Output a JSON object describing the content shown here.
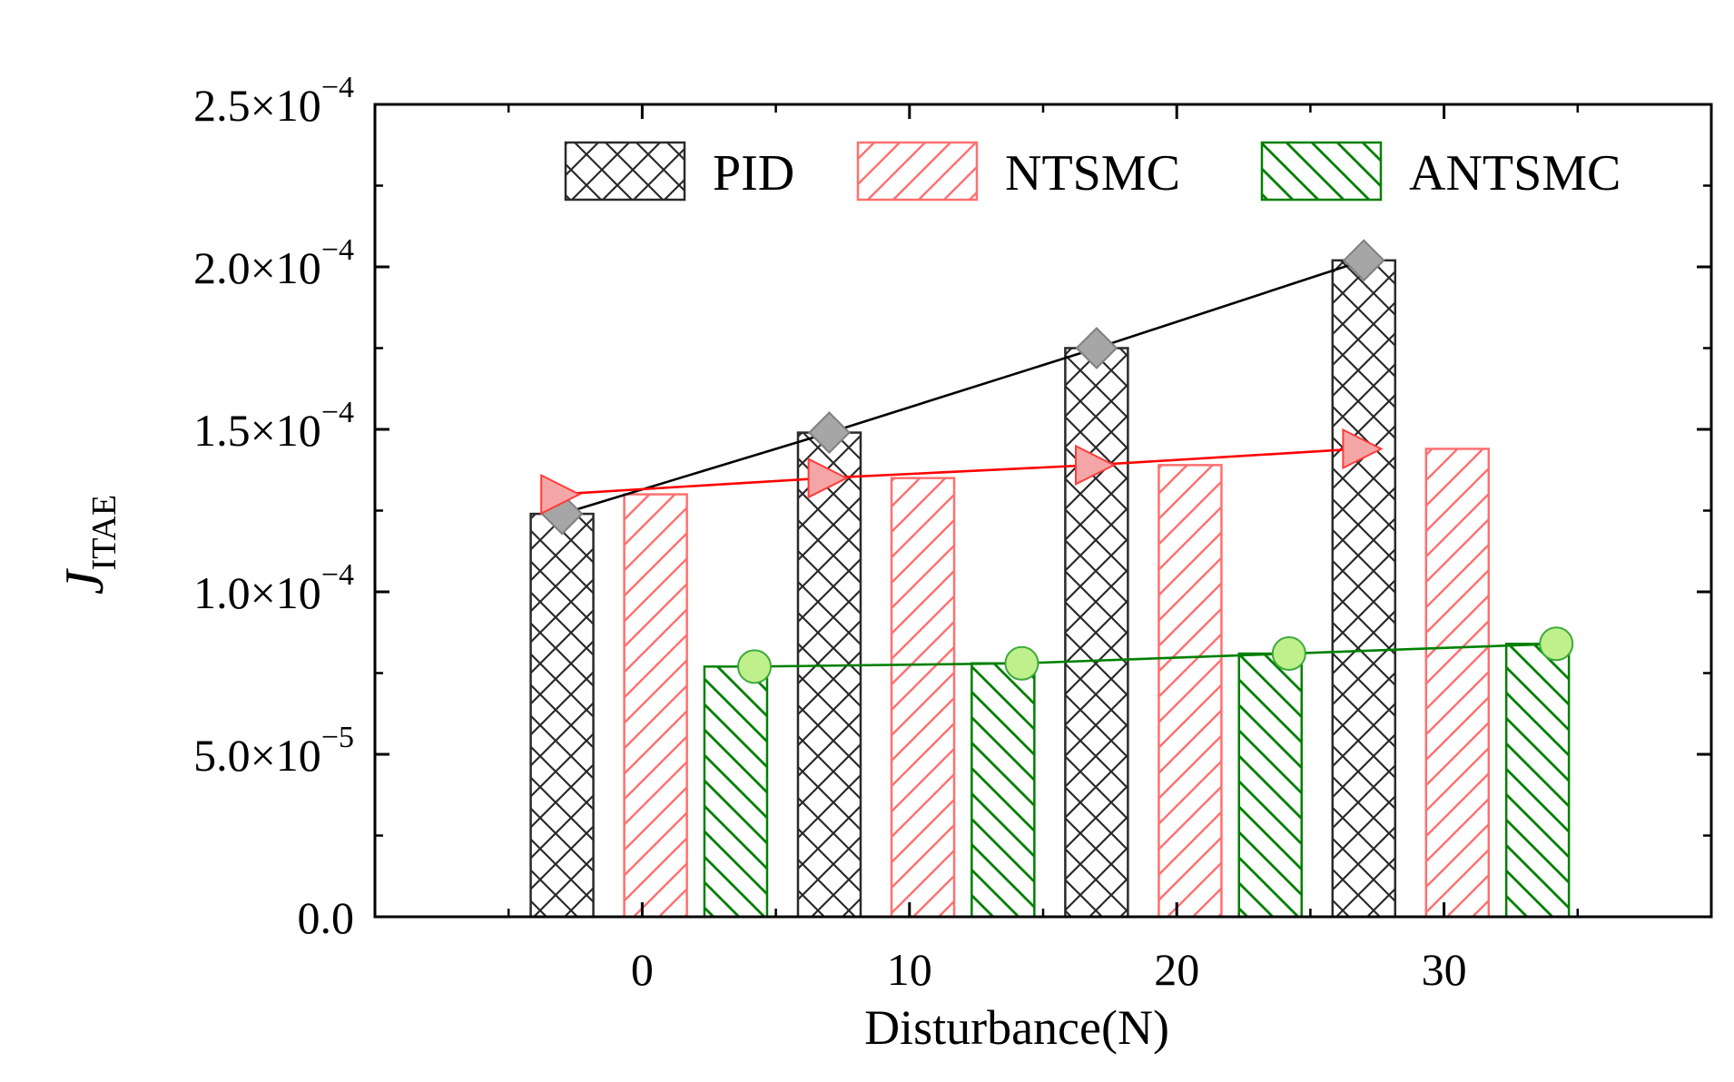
{
  "chart_data": {
    "type": "bar",
    "xlabel": "Disturbance(N)",
    "ylabel": {
      "main": "J",
      "sub": "ITAE"
    },
    "categories": [
      "0",
      "10",
      "20",
      "30"
    ],
    "x": [
      0,
      10,
      20,
      30
    ],
    "ylim": [
      0,
      0.00025
    ],
    "yticks": [
      {
        "value": 0,
        "mantissa": "0.0",
        "exponent": ""
      },
      {
        "value": 5e-05,
        "mantissa": "5.0×10",
        "exponent": "−5"
      },
      {
        "value": 0.0001,
        "mantissa": "1.0×10",
        "exponent": "−4"
      },
      {
        "value": 0.00015,
        "mantissa": "1.5×10",
        "exponent": "−4"
      },
      {
        "value": 0.0002,
        "mantissa": "2.0×10",
        "exponent": "−4"
      },
      {
        "value": 0.00025,
        "mantissa": "2.5×10",
        "exponent": "−4"
      }
    ],
    "series": [
      {
        "name": "PID",
        "values": [
          0.000124,
          0.000149,
          0.000175,
          0.000202
        ],
        "color": "#000000",
        "marker": "diamond",
        "marker_fill": "#a6a6a6",
        "hatch": "cross"
      },
      {
        "name": "NTSMC",
        "values": [
          0.00013,
          0.000135,
          0.000139,
          0.000144
        ],
        "color": "#ff0000",
        "marker": "triangle",
        "marker_fill": "#f4a6a6",
        "hatch": "forward"
      },
      {
        "name": "ANTSMC",
        "values": [
          7.7e-05,
          7.8e-05,
          8.1e-05,
          8.4e-05
        ],
        "color": "#008000",
        "marker": "circle",
        "marker_fill": "#bff08c",
        "hatch": "back"
      }
    ],
    "legend_position": "top-right",
    "grid": false
  }
}
